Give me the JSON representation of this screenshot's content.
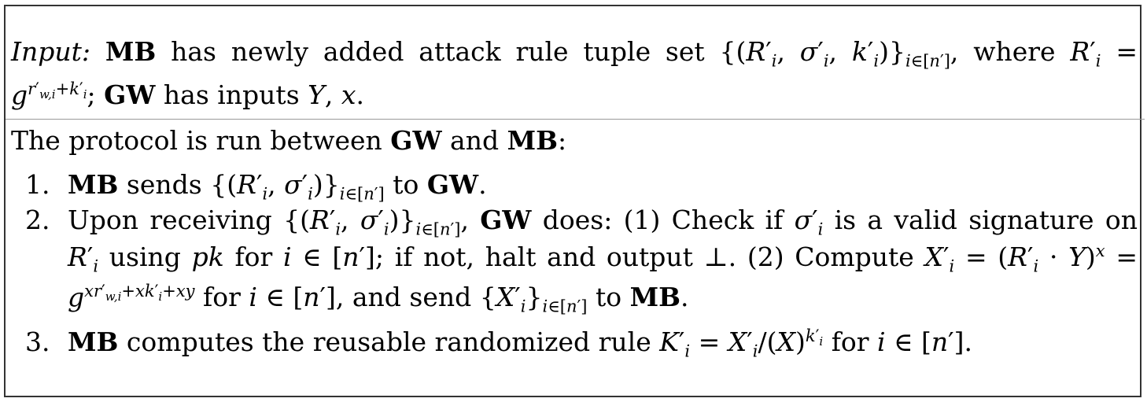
{
  "protocol": {
    "input_label": "Input:",
    "mb": "MB",
    "gw": "GW",
    "input_text_1": "has newly added attack rule tuple set",
    "input_text_2": "where",
    "input_text_3": "has inputs",
    "intro": "The protocol is run between",
    "and": "and",
    "steps": [
      {
        "num": "1.",
        "text_a": "sends",
        "text_b": "to"
      },
      {
        "num": "2.",
        "text_a": "Upon receiving",
        "text_b": "does: (1) Check if",
        "text_c": "is a valid signature on",
        "text_d": "using",
        "text_e": "for",
        "text_f": "; if not, halt and output ⊥.  (2) Compute",
        "text_g": "for",
        "text_h": ", and send",
        "text_i": "to"
      },
      {
        "num": "3.",
        "text_a": "computes the reusable randomized rule",
        "text_b": "for"
      }
    ]
  }
}
